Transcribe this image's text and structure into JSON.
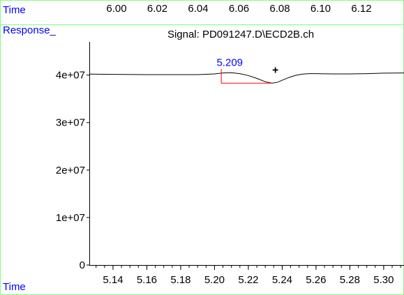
{
  "header": {
    "time_label": "Time",
    "response_label": "Response_",
    "bottom_time_label": "Time",
    "top_axis_ticks": [
      "6.00",
      "6.02",
      "6.04",
      "6.06",
      "6.08",
      "6.10",
      "6.12"
    ]
  },
  "colors": {
    "frame_green": "#7fff7f",
    "label_blue": "#0000ff",
    "trace_black": "#000000",
    "baseline_red": "#ff0000"
  },
  "chart_data": {
    "type": "line",
    "title": "Signal: PD091247.D\\ECD2B.ch",
    "xlabel": "Time",
    "ylabel": "Response_",
    "xlim": [
      5.126,
      5.312
    ],
    "ylim": [
      0,
      47000000
    ],
    "y_ticks": [
      0,
      10000000,
      20000000,
      30000000,
      40000000
    ],
    "y_tick_labels": [
      "0",
      "1e+07",
      "2e+07",
      "3e+07",
      "4e+07"
    ],
    "x_ticks": [
      5.14,
      5.16,
      5.18,
      5.2,
      5.22,
      5.24,
      5.26,
      5.28,
      5.3
    ],
    "x_tick_labels": [
      "5.14",
      "5.16",
      "5.18",
      "5.20",
      "5.22",
      "5.24",
      "5.26",
      "5.28",
      "5.30"
    ],
    "series": [
      {
        "x": [
          5.126,
          5.14,
          5.16,
          5.18,
          5.19,
          5.2,
          5.205,
          5.21,
          5.215,
          5.22,
          5.225,
          5.23,
          5.234,
          5.237,
          5.24,
          5.244,
          5.248,
          5.252,
          5.256,
          5.26,
          5.27,
          5.28,
          5.29,
          5.3,
          5.312
        ],
        "y": [
          40200000,
          40150000,
          40100000,
          40100000,
          40100000,
          40250000,
          40450000,
          40500000,
          40300000,
          39900000,
          39300000,
          38600000,
          38300000,
          38450000,
          38900000,
          39500000,
          39950000,
          40200000,
          40300000,
          40300000,
          40250000,
          40250000,
          40300000,
          40400000,
          40450000
        ]
      }
    ],
    "peak": {
      "label": "5.209",
      "apex_x": 5.209,
      "apex_y": 40500000,
      "marker": "+",
      "marker_x": 5.236,
      "marker_y": 40350000,
      "baseline": {
        "x_start": 5.204,
        "x_end": 5.234,
        "y_start": 40400000,
        "y_end": 38300000
      }
    }
  }
}
